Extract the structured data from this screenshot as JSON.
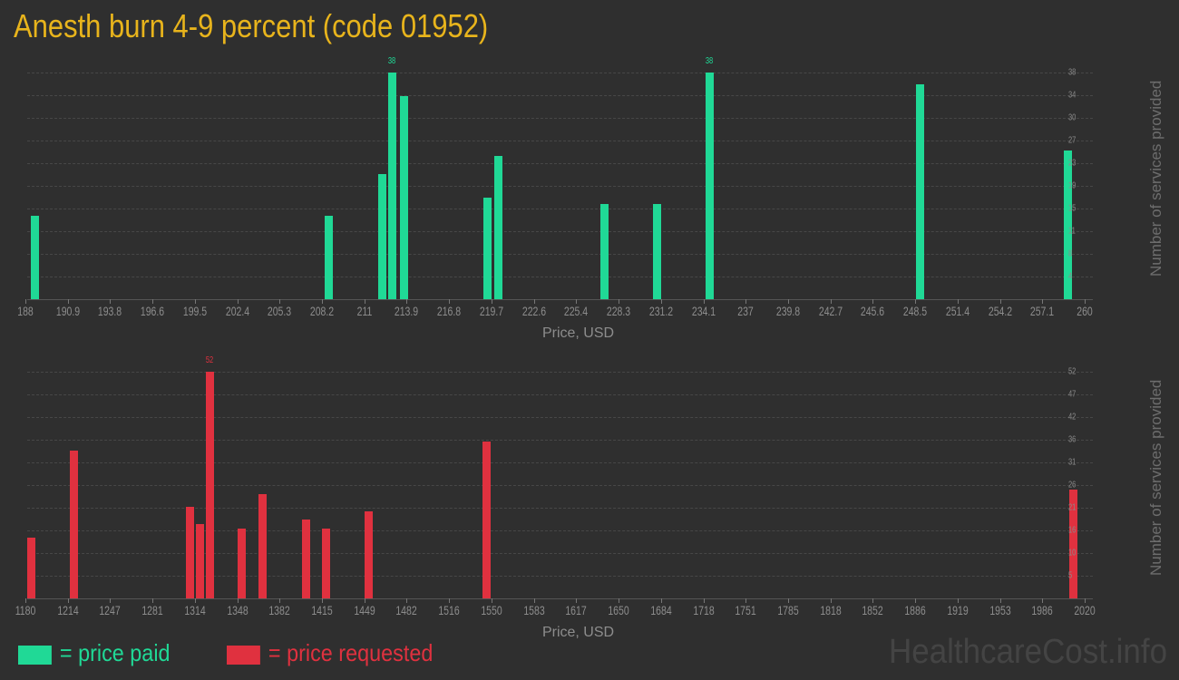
{
  "title": "Anesth burn 4-9 percent (code 01952)",
  "colors": {
    "paid": "#20d996",
    "requested": "#e0313f",
    "title": "#e8b41c"
  },
  "legend": {
    "paid": "= price paid",
    "requested": "= price requested"
  },
  "watermark": "HealthcareCost.info",
  "chart_data": [
    {
      "type": "bar",
      "title": "price paid",
      "xlabel": "Price, USD",
      "ylabel": "Number of services provided",
      "x_ticks": [
        "188",
        "190.9",
        "193.8",
        "196.6",
        "199.5",
        "202.4",
        "205.3",
        "208.2",
        "211",
        "213.9",
        "216.8",
        "219.7",
        "222.6",
        "225.4",
        "228.3",
        "231.2",
        "234.1",
        "237",
        "239.8",
        "242.7",
        "245.6",
        "248.5",
        "251.4",
        "254.2",
        "257.1",
        "260"
      ],
      "y_ticks": [
        4,
        8,
        11,
        15,
        19,
        23,
        27,
        30,
        34,
        38
      ],
      "ylim": [
        0,
        38
      ],
      "xlim": [
        188,
        260
      ],
      "grid": true,
      "peak_label": "38",
      "series": [
        {
          "name": "price paid",
          "points": [
            {
              "x": 188.6,
              "y": 14
            },
            {
              "x": 208.6,
              "y": 14
            },
            {
              "x": 212.2,
              "y": 21
            },
            {
              "x": 212.9,
              "y": 38
            },
            {
              "x": 213.7,
              "y": 34
            },
            {
              "x": 219.4,
              "y": 17
            },
            {
              "x": 220.1,
              "y": 24
            },
            {
              "x": 227.3,
              "y": 16
            },
            {
              "x": 230.9,
              "y": 16
            },
            {
              "x": 234.5,
              "y": 38
            },
            {
              "x": 248.8,
              "y": 36
            },
            {
              "x": 258.8,
              "y": 25
            }
          ]
        }
      ]
    },
    {
      "type": "bar",
      "title": "price requested",
      "xlabel": "Price, USD",
      "ylabel": "Number of services provided",
      "x_ticks": [
        "1180",
        "1214",
        "1247",
        "1281",
        "1314",
        "1348",
        "1382",
        "1415",
        "1449",
        "1482",
        "1516",
        "1550",
        "1583",
        "1617",
        "1650",
        "1684",
        "1718",
        "1751",
        "1785",
        "1818",
        "1852",
        "1886",
        "1919",
        "1953",
        "1986",
        "2020"
      ],
      "y_ticks": [
        5,
        10,
        16,
        21,
        26,
        31,
        36,
        42,
        47,
        52
      ],
      "ylim": [
        0,
        52
      ],
      "xlim": [
        1180,
        2020
      ],
      "grid": true,
      "peak_label": "52",
      "series": [
        {
          "name": "price requested",
          "points": [
            {
              "x": 1184,
              "y": 14
            },
            {
              "x": 1218,
              "y": 34
            },
            {
              "x": 1310,
              "y": 21
            },
            {
              "x": 1318,
              "y": 17
            },
            {
              "x": 1326,
              "y": 52
            },
            {
              "x": 1351,
              "y": 16
            },
            {
              "x": 1368,
              "y": 24
            },
            {
              "x": 1402,
              "y": 18
            },
            {
              "x": 1418,
              "y": 16
            },
            {
              "x": 1452,
              "y": 20
            },
            {
              "x": 1545,
              "y": 36
            },
            {
              "x": 2011,
              "y": 25
            }
          ]
        }
      ]
    }
  ]
}
